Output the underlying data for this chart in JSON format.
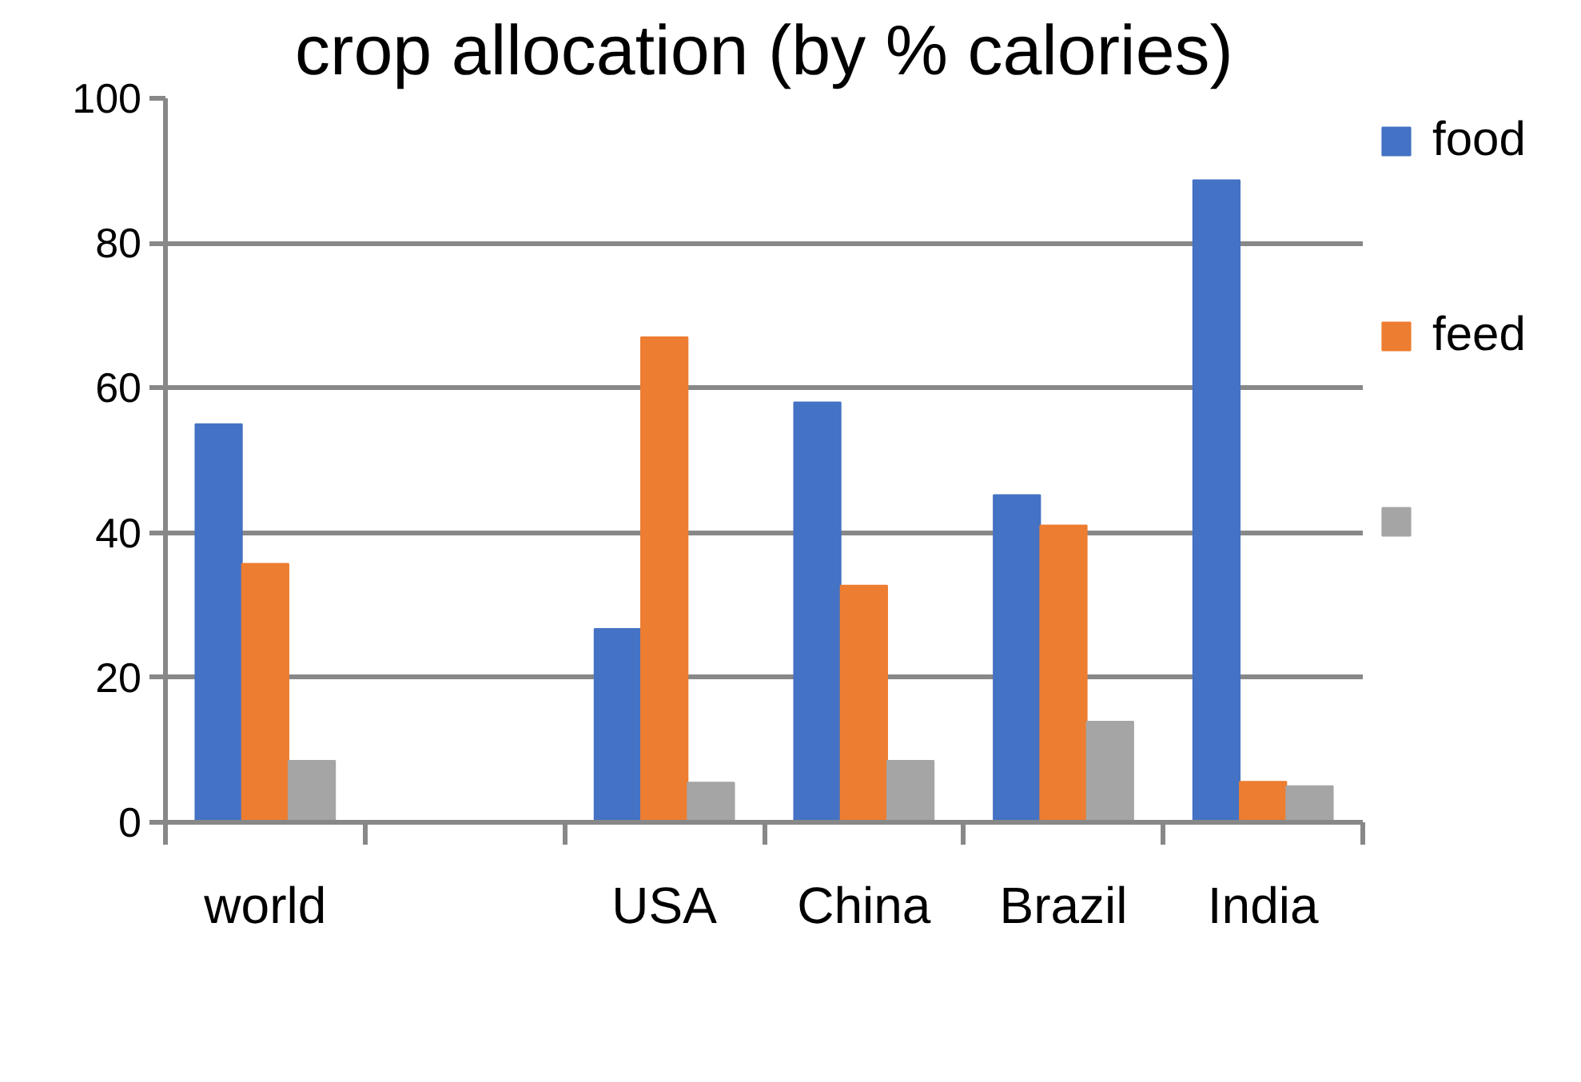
{
  "chart_data": {
    "type": "bar",
    "title": "crop allocation (by % calories)",
    "categories": [
      "world",
      null,
      "USA",
      "China",
      "Brazil",
      "India"
    ],
    "series": [
      {
        "name": "food",
        "color": "#4472c4",
        "values": [
          55,
          null,
          26.7,
          58,
          45.2,
          88.7
        ]
      },
      {
        "name": "feed",
        "color": "#ed7d31",
        "values": [
          35.7,
          null,
          67,
          32.7,
          41,
          5.6
        ]
      },
      {
        "color": "#a5a5a5",
        "values": [
          8.5,
          null,
          5.5,
          8.5,
          13.9,
          5
        ]
      }
    ],
    "ylim": [
      0,
      100
    ],
    "yticks": [
      0,
      20,
      40,
      60,
      80,
      100
    ],
    "grid": "y",
    "legend": "right"
  }
}
